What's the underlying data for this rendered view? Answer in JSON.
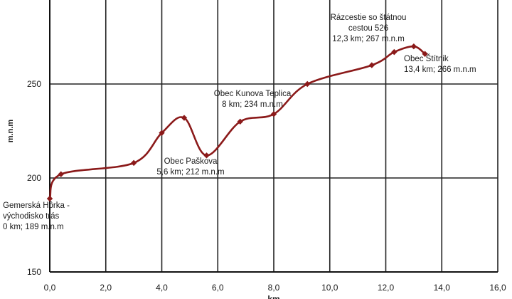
{
  "chart_data": {
    "type": "line",
    "xlabel": "km",
    "ylabel": "m.n.m",
    "xlim": [
      0,
      16
    ],
    "ylim": [
      150,
      290
    ],
    "x_ticks": [
      "0,0",
      "2,0",
      "4,0",
      "6,0",
      "8,0",
      "10,0",
      "12,0",
      "14,0",
      "16,0"
    ],
    "y_ticks": [
      "150",
      "200",
      "250"
    ],
    "grid": true,
    "series": [
      {
        "color": "#8b1a1a",
        "points": [
          {
            "x": 0.0,
            "y": 189
          },
          {
            "x": 0.4,
            "y": 202
          },
          {
            "x": 3.0,
            "y": 208
          },
          {
            "x": 4.0,
            "y": 224
          },
          {
            "x": 4.8,
            "y": 232
          },
          {
            "x": 5.6,
            "y": 212
          },
          {
            "x": 6.8,
            "y": 230
          },
          {
            "x": 8.0,
            "y": 234
          },
          {
            "x": 9.2,
            "y": 250
          },
          {
            "x": 11.5,
            "y": 260
          },
          {
            "x": 12.3,
            "y": 267
          },
          {
            "x": 13.0,
            "y": 270
          },
          {
            "x": 13.4,
            "y": 266
          }
        ]
      }
    ],
    "annotations": [
      {
        "lines": [
          "Gemerská Hôrka -",
          "východisko trás",
          "0 km; 189 m.n.m"
        ]
      },
      {
        "lines": [
          "Obec Paškova",
          "5,6 km; 212 m.n.m"
        ]
      },
      {
        "lines": [
          "Obec Kunova Teplica",
          "8 km; 234 m.n.m"
        ]
      },
      {
        "lines": [
          "Rázcestie so štátnou",
          "cestou 526",
          "12,3 km; 267 m.n.m"
        ]
      },
      {
        "lines": [
          "Obec Štítnik",
          "13,4 km; 266 m.n.m"
        ]
      }
    ]
  }
}
